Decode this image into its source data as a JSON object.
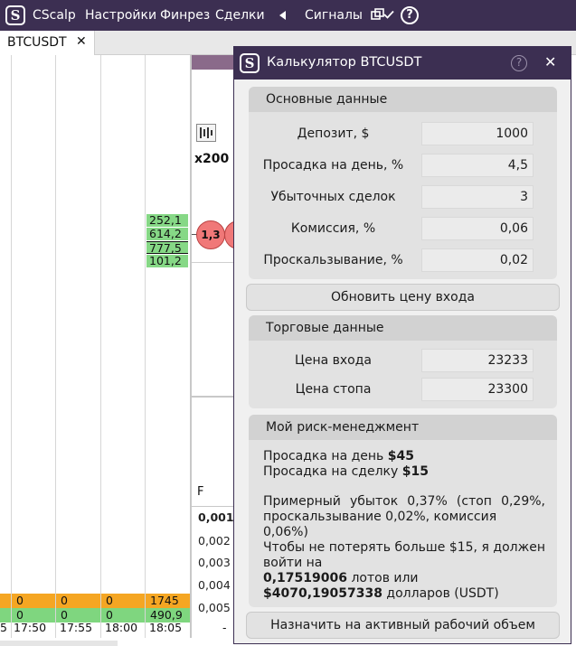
{
  "menubar": {
    "app_name": "CScalp",
    "logo_letter": "S",
    "items": [
      "Настройки",
      "Финрез",
      "Сделки"
    ],
    "signals_label": "Сигналы",
    "help_glyph": "?"
  },
  "tab": {
    "label": "BTCUSDT",
    "close_glyph": "✕"
  },
  "workspace": {
    "price_tags": [
      "252,1",
      "614,2",
      "777,5",
      "101,2"
    ],
    "multiplier": "x200",
    "bubbles": [
      "1,3",
      "("
    ],
    "dropdown_letter": "F",
    "values": [
      "0,001",
      "0,002",
      "0,003",
      "0,004",
      "0,005"
    ],
    "cluster_orange": [
      "0",
      "0",
      "0",
      "1745"
    ],
    "cluster_green": [
      "0",
      "0",
      "0",
      "490,9"
    ],
    "times": [
      "5",
      "17:50",
      "17:55",
      "18:00",
      "18:05",
      "-"
    ]
  },
  "calculator": {
    "title": "Калькулятор BTCUSDT",
    "help_glyph": "?",
    "close_glyph": "✕",
    "basic": {
      "header": "Основные данные",
      "rows": [
        {
          "label": "Депозит, $",
          "value": "1000"
        },
        {
          "label": "Просадка на день, %",
          "value": "4,5"
        },
        {
          "label": "Убыточных сделок",
          "value": "3"
        },
        {
          "label": "Комиссия, %",
          "value": "0,06"
        },
        {
          "label": "Проскальзывание, %",
          "value": "0,02"
        }
      ]
    },
    "refresh_button": "Обновить цену входа",
    "trade": {
      "header": "Торговые данные",
      "rows": [
        {
          "label": "Цена входа",
          "value": "23233"
        },
        {
          "label": "Цена стопа",
          "value": "23300"
        }
      ]
    },
    "risk": {
      "header": "Мой риск-менеджмент",
      "day_drawdown_label": "Просадка на день",
      "day_drawdown_value": "$45",
      "trade_drawdown_label": "Просадка на сделку",
      "trade_drawdown_value": "$15",
      "loss_line1": "Примерный убыток 0,37% (стоп 0,29%,",
      "loss_line2": "проскальзывание 0,02%, комиссия 0,06%)",
      "entry_line1": "Чтобы не потерять больше $15, я должен",
      "entry_line2": "войти на",
      "lots_value": "0,17519006",
      "lots_suffix": "лотов или",
      "usd_value": "$4070,19057338",
      "usd_suffix": "долларов (USDT)"
    },
    "assign_button": "Назначить на активный рабочий объем"
  },
  "colors": {
    "titlebar": "#3c2f52",
    "price_tag": "#86d886",
    "cluster_orange": "#f5a623",
    "cluster_green": "#7fd67f",
    "bubble": "#f07878"
  }
}
